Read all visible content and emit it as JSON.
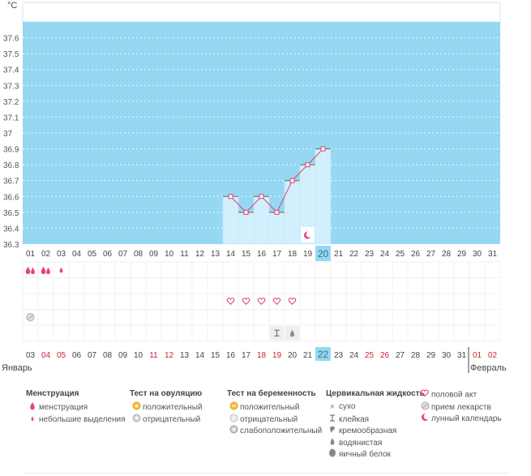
{
  "chart_data": {
    "type": "bar",
    "ylabel": "°С",
    "yticks": [
      "36.3",
      "36.4",
      "36.5",
      "36.6",
      "36.7",
      "36.8",
      "36.9",
      "37",
      "37.1",
      "37.2",
      "37.3",
      "37.4",
      "37.5",
      "37.6"
    ],
    "ylim": [
      36.3,
      37.7
    ],
    "cycle_days": [
      "01",
      "02",
      "03",
      "04",
      "05",
      "06",
      "07",
      "08",
      "09",
      "10",
      "11",
      "12",
      "13",
      "14",
      "15",
      "16",
      "17",
      "18",
      "19",
      "20",
      "21",
      "22",
      "23",
      "24",
      "25",
      "26",
      "27",
      "28",
      "29",
      "30",
      "31"
    ],
    "x": [
      14,
      15,
      16,
      17,
      18,
      19,
      20
    ],
    "values": [
      36.6,
      36.5,
      36.6,
      36.5,
      36.7,
      36.8,
      36.9
    ],
    "highlight_day": "20",
    "dates": [
      "03",
      "04",
      "05",
      "06",
      "07",
      "08",
      "09",
      "10",
      "11",
      "12",
      "13",
      "14",
      "15",
      "16",
      "17",
      "18",
      "19",
      "20",
      "21",
      "22",
      "23",
      "24",
      "25",
      "26",
      "27",
      "28",
      "29",
      "30",
      "31",
      "01",
      "02"
    ],
    "date_red": [
      "04",
      "05",
      "11",
      "12",
      "18",
      "19",
      "25",
      "26",
      "01",
      "02"
    ],
    "highlight_date": "22",
    "month_left": "Январь",
    "month_right": "Февраль",
    "rows": {
      "menstruation": [
        {
          "day": 1,
          "icon": "menstruation-icon"
        },
        {
          "day": 2,
          "icon": "menstruation-icon"
        },
        {
          "day": 3,
          "icon": "light-spotting-icon"
        }
      ],
      "intercourse": [
        14,
        15,
        16,
        17,
        18
      ],
      "medication": [
        1
      ],
      "cervical": [
        {
          "day": 17,
          "icon": "sticky-icon"
        },
        {
          "day": 18,
          "icon": "watery-icon"
        }
      ],
      "lunar": [
        19
      ]
    }
  },
  "legend": {
    "menstruation": {
      "title": "Менструация",
      "items": [
        "менструация",
        "небольшие выделения"
      ]
    },
    "ovulation": {
      "title": "Тест на овуляцию",
      "items": [
        "положительный",
        "отрицательный"
      ]
    },
    "pregnancy": {
      "title": "Тест на беременность",
      "items": [
        "положительный",
        "отрицательный",
        "слабоположительный"
      ]
    },
    "cervical": {
      "title": "Цервикальная жидкость",
      "items": [
        "сухо",
        "клейкая",
        "кремообразная",
        "водянистая",
        "яичный белок"
      ]
    },
    "other": {
      "items": [
        "половой акт",
        "прием лекарств",
        "лунный календарь"
      ]
    }
  },
  "colors": {
    "plot": "#96d8f2",
    "bar": "#d2effd",
    "line": "#e03d6e",
    "pink": "#e8437a",
    "red": "#cc2233",
    "highlight": "#96d8f2"
  }
}
